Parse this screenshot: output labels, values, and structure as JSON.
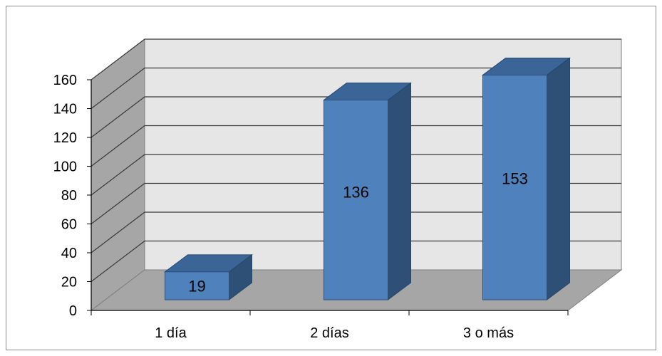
{
  "chart_data": {
    "type": "bar",
    "categories": [
      "1 día",
      "2 días",
      "3 o más"
    ],
    "values": [
      19,
      136,
      153
    ],
    "data_labels": [
      "19",
      "136",
      "153"
    ],
    "title": "",
    "xlabel": "",
    "ylabel": "",
    "ylim": [
      0,
      160
    ],
    "yticks": [
      "0",
      "20",
      "40",
      "60",
      "80",
      "100",
      "120",
      "140",
      "160"
    ],
    "grid": true,
    "legend": "none",
    "style": "3d-column",
    "colors": {
      "bar_front": "#4f81bd",
      "bar_side": "#2e5077",
      "bar_top": "#3b6596",
      "back_wall": "#e6e6e6",
      "side_wall": "#a6a6a6",
      "floor": "#a6a6a6",
      "gridline": "#3a3a3a"
    }
  }
}
